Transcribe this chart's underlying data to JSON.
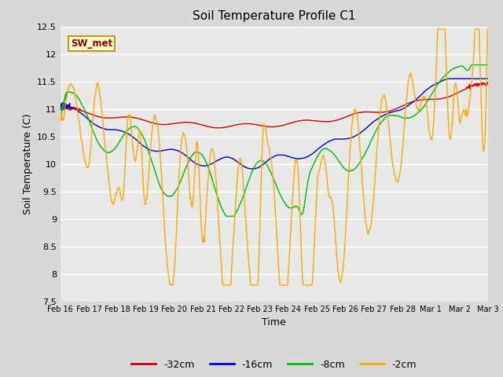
{
  "title": "Soil Temperature Profile C1",
  "xlabel": "Time",
  "ylabel": "Soil Temperature (C)",
  "ylim": [
    7.5,
    12.5
  ],
  "yticks": [
    7.5,
    8.0,
    8.5,
    9.0,
    9.5,
    10.0,
    10.5,
    11.0,
    11.5,
    12.0,
    12.5
  ],
  "colors": {
    "-32cm": "#cc0000",
    "-16cm": "#0000cc",
    "-8cm": "#00bb00",
    "-2cm": "#ffaa00"
  },
  "legend_label": "SW_met",
  "legend_box_facecolor": "#ffffcc",
  "legend_box_edgecolor": "#aa8800",
  "background_color": "#e8e8e8",
  "grid_color": "#ffffff",
  "x_labels": [
    "Feb 16",
    "Feb 17",
    "Feb 18",
    "Feb 19",
    "Feb 20",
    "Feb 21",
    "Feb 22",
    "Feb 23",
    "Feb 24",
    "Feb 25",
    "Feb 26",
    "Feb 27",
    "Feb 28",
    "Mar 1",
    "Mar 2",
    "Mar 3"
  ],
  "figsize": [
    6.4,
    4.8
  ],
  "dpi": 100
}
